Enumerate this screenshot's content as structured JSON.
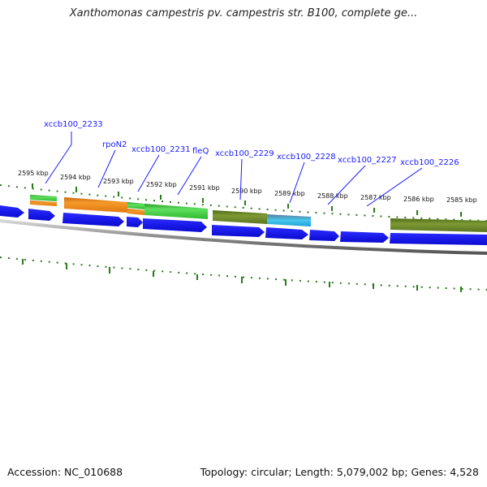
{
  "title": "Xanthomonas campestris pv. campestris str. B100, complete ge...",
  "footer": {
    "accession": "Accession: NC_010688",
    "summary": "Topology: circular; Length: 5,079,002 bp; Genes: 4,528"
  },
  "colors": {
    "background": "#ffffff",
    "gene_arrow": "#1010e8",
    "backbone": "#8a8a8a",
    "tick": "#2a7a1a",
    "label_text": "#1a1aff",
    "feature_orange": "#f08a18",
    "feature_green": "#3cc83c",
    "feature_olive": "#6e8a28",
    "feature_cyan": "#28b8e8"
  },
  "kbp_labels": [
    "2595 kbp",
    "2594 kbp",
    "2593 kbp",
    "2592 kbp",
    "2591 kbp",
    "2590 kbp",
    "2589 kbp",
    "2588 kbp",
    "2587 kbp",
    "2586 kbp",
    "2585 kbp"
  ],
  "gene_labels": [
    "xccb100_2233",
    "rpoN2",
    "xccb100_2231",
    "fleQ",
    "xccb100_2229",
    "xccb100_2228",
    "xccb100_2227",
    "xccb100_2226"
  ]
}
